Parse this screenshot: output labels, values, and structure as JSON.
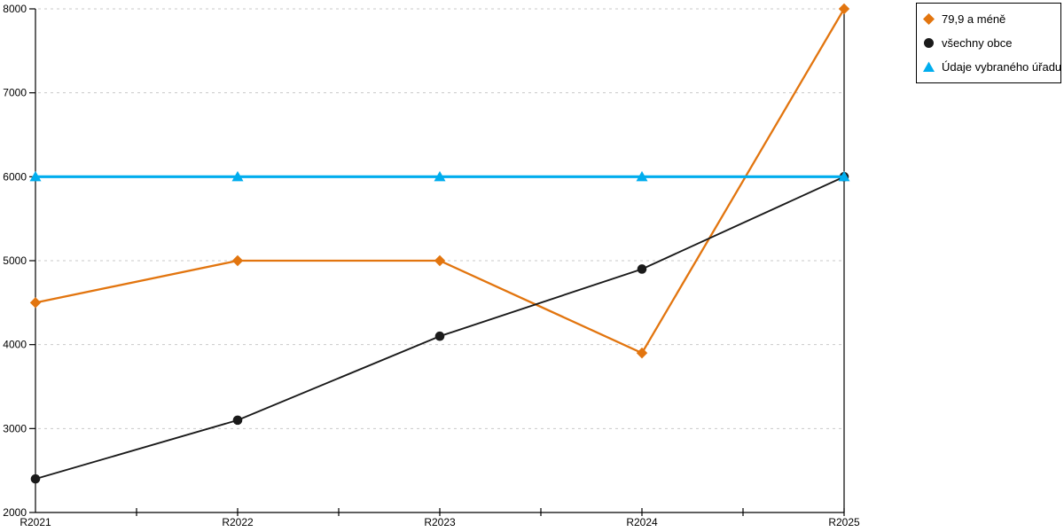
{
  "chart_data": {
    "type": "line",
    "title": "",
    "xlabel": "",
    "ylabel": "",
    "categories": [
      "R2021",
      "R2022",
      "R2023",
      "R2024",
      "R2025"
    ],
    "series": [
      {
        "name": "79,9 a méně",
        "marker": "diamond",
        "color": "#E2750F",
        "values": [
          4500,
          5000,
          5000,
          3900,
          8000
        ]
      },
      {
        "name": "všechny obce",
        "marker": "circle",
        "color": "#1A1A1A",
        "values": [
          2400,
          3100,
          4100,
          4900,
          6000
        ]
      },
      {
        "name": "Údaje vybraného úřadu",
        "marker": "triangle",
        "color": "#00ADEE",
        "values": [
          6000,
          6000,
          6000,
          6000,
          6000
        ]
      }
    ],
    "ylim": [
      2000,
      8000
    ],
    "y_tick_step": 1000,
    "y_tick_labels": [
      "2000",
      "3000",
      "4000",
      "5000",
      "6000",
      "7000",
      "8000"
    ],
    "grid": "horizontal-dashed",
    "gridline_color": "#C9C9C9",
    "axis_color": "#000000",
    "legend_position": "top-right"
  },
  "legend": {
    "marker_icon_names": [
      "diamond-icon",
      "circle-icon",
      "triangle-icon"
    ]
  }
}
